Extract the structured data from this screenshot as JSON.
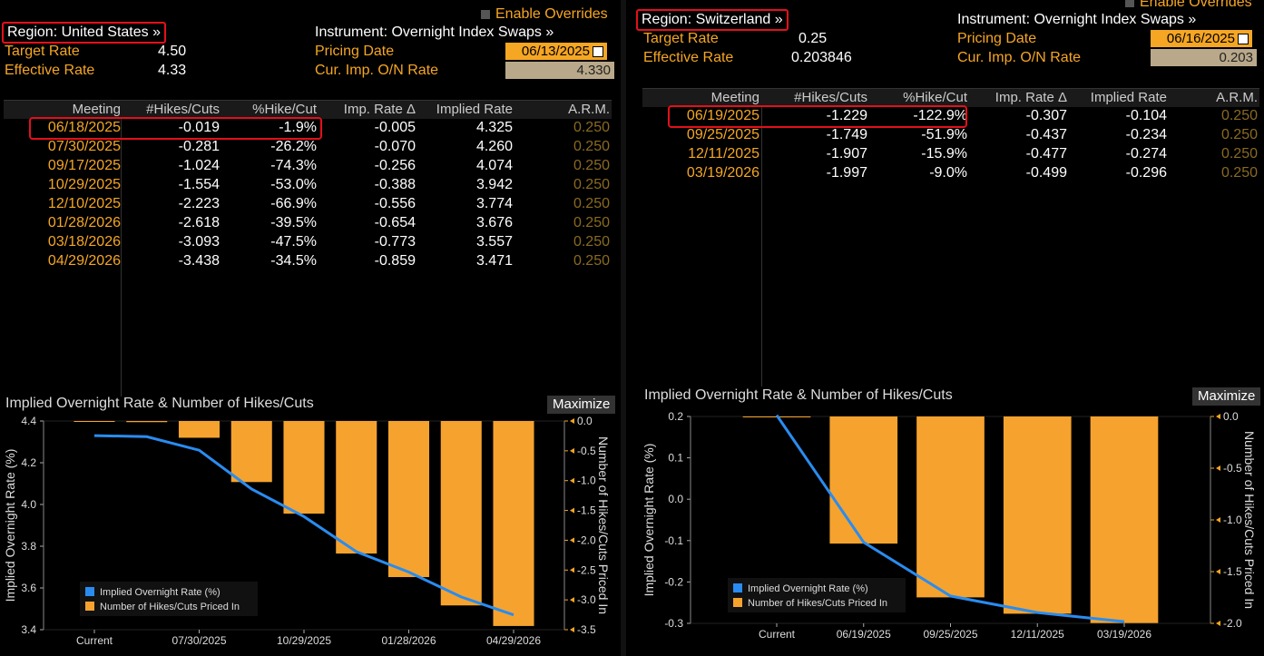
{
  "left": {
    "region": "Region: United States »",
    "instrument": "Instrument: Overnight Index Swaps »",
    "enable_overrides": "Enable Overrides",
    "target_rate_label": "Target Rate",
    "target_rate": "4.50",
    "effective_rate_label": "Effective Rate",
    "effective_rate": "4.33",
    "pricing_date_label": "Pricing Date",
    "pricing_date": "06/13/2025",
    "cur_imp_label": "Cur. Imp. O/N Rate",
    "cur_imp": "4.330",
    "headers": [
      "Meeting",
      "#Hikes/Cuts",
      "%Hike/Cut",
      "Imp. Rate Δ",
      "Implied Rate",
      "A.R.M."
    ],
    "rows": [
      [
        "06/18/2025",
        "-0.019",
        "-1.9%",
        "-0.005",
        "4.325",
        "0.250"
      ],
      [
        "07/30/2025",
        "-0.281",
        "-26.2%",
        "-0.070",
        "4.260",
        "0.250"
      ],
      [
        "09/17/2025",
        "-1.024",
        "-74.3%",
        "-0.256",
        "4.074",
        "0.250"
      ],
      [
        "10/29/2025",
        "-1.554",
        "-53.0%",
        "-0.388",
        "3.942",
        "0.250"
      ],
      [
        "12/10/2025",
        "-2.223",
        "-66.9%",
        "-0.556",
        "3.774",
        "0.250"
      ],
      [
        "01/28/2026",
        "-2.618",
        "-39.5%",
        "-0.654",
        "3.676",
        "0.250"
      ],
      [
        "03/18/2026",
        "-3.093",
        "-47.5%",
        "-0.773",
        "3.557",
        "0.250"
      ],
      [
        "04/29/2026",
        "-3.438",
        "-34.5%",
        "-0.859",
        "3.471",
        "0.250"
      ]
    ],
    "chart_title": "Implied Overnight Rate & Number of Hikes/Cuts",
    "maximize": "Maximize"
  },
  "right": {
    "region": "Region: Switzerland »",
    "instrument": "Instrument: Overnight Index Swaps »",
    "enable_overrides": "Enable Overrides",
    "target_rate_label": "Target Rate",
    "target_rate": "0.25",
    "effective_rate_label": "Effective Rate",
    "effective_rate": "0.203846",
    "pricing_date_label": "Pricing Date",
    "pricing_date": "06/16/2025",
    "cur_imp_label": "Cur. Imp. O/N Rate",
    "cur_imp": "0.203",
    "headers": [
      "Meeting",
      "#Hikes/Cuts",
      "%Hike/Cut",
      "Imp. Rate Δ",
      "Implied Rate",
      "A.R.M."
    ],
    "rows": [
      [
        "06/19/2025",
        "-1.229",
        "-122.9%",
        "-0.307",
        "-0.104",
        "0.250"
      ],
      [
        "09/25/2025",
        "-1.749",
        "-51.9%",
        "-0.437",
        "-0.234",
        "0.250"
      ],
      [
        "12/11/2025",
        "-1.907",
        "-15.9%",
        "-0.477",
        "-0.274",
        "0.250"
      ],
      [
        "03/19/2026",
        "-1.997",
        "-9.0%",
        "-0.499",
        "-0.296",
        "0.250"
      ]
    ],
    "chart_title": "Implied Overnight Rate & Number of Hikes/Cuts",
    "maximize": "Maximize"
  },
  "chart_data": [
    {
      "type": "bar",
      "categories": [
        "Current",
        "06/18/2025",
        "07/30/2025",
        "09/17/2025",
        "10/29/2025",
        "12/10/2025",
        "01/28/2026",
        "03/18/2026",
        "04/29/2026"
      ],
      "x_tick_labels": [
        "Current",
        "07/30/2025",
        "10/29/2025",
        "01/28/2026",
        "04/29/2026"
      ],
      "series": [
        {
          "name": "Implied Overnight Rate (%)",
          "type": "line",
          "axis": "left",
          "color": "#2a8cf0",
          "values": [
            4.33,
            4.325,
            4.26,
            4.074,
            3.942,
            3.774,
            3.676,
            3.557,
            3.471
          ]
        },
        {
          "name": "Number of Hikes/Cuts Priced In",
          "type": "bar",
          "axis": "right",
          "color": "#f5a32e",
          "values": [
            0,
            -0.019,
            -0.281,
            -1.024,
            -1.554,
            -2.223,
            -2.618,
            -3.093,
            -3.438
          ]
        }
      ],
      "ylabel_left": "Implied Overnight Rate (%)",
      "ylabel_right": "Number of Hikes/Cuts Priced In",
      "ylim_left": [
        3.4,
        4.4
      ],
      "yticks_left": [
        "4.4",
        "4.2",
        "4.0",
        "3.8",
        "3.6",
        "3.4"
      ],
      "ylim_right": [
        -3.5,
        0
      ],
      "yticks_right": [
        "0.0",
        "-0.5",
        "-1.0",
        "-1.5",
        "-2.0",
        "-2.5",
        "-3.0",
        "-3.5"
      ],
      "legend": "bottom-left"
    },
    {
      "type": "bar",
      "categories": [
        "Current",
        "06/19/2025",
        "09/25/2025",
        "12/11/2025",
        "03/19/2026"
      ],
      "x_tick_labels": [
        "Current",
        "06/19/2025",
        "09/25/2025",
        "12/11/2025",
        "03/19/2026"
      ],
      "series": [
        {
          "name": "Implied Overnight Rate (%)",
          "type": "line",
          "axis": "left",
          "color": "#2a8cf0",
          "values": [
            0.203,
            -0.104,
            -0.234,
            -0.274,
            -0.296
          ]
        },
        {
          "name": "Number of Hikes/Cuts Priced In",
          "type": "bar",
          "axis": "right",
          "color": "#f5a32e",
          "values": [
            0,
            -1.229,
            -1.749,
            -1.907,
            -1.997
          ]
        }
      ],
      "ylabel_left": "Implied Overnight Rate (%)",
      "ylabel_right": "Number of Hikes/Cuts Priced In",
      "ylim_left": [
        -0.3,
        0.2
      ],
      "yticks_left": [
        "0.2",
        "0.1",
        "0.0",
        "-0.1",
        "-0.2",
        "-0.3"
      ],
      "ylim_right": [
        -2.0,
        0
      ],
      "yticks_right": [
        "0.0",
        "-0.5",
        "-1.0",
        "-1.5",
        "-2.0"
      ],
      "legend": "bottom-left"
    }
  ]
}
